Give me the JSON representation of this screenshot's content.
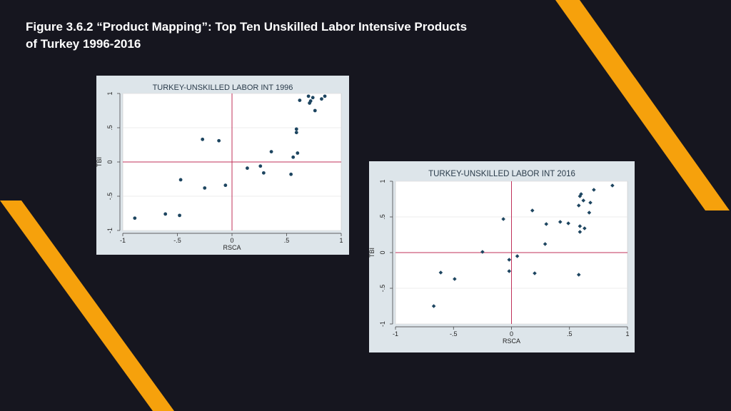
{
  "page": {
    "title_line1": "Figure 3.6.2 “Product Mapping”: Top Ten Unskilled Labor Intensive Products",
    "title_line2": "of Turkey 1996-2016",
    "background_color": "#16161f",
    "stripe_color": "#f6a10c"
  },
  "chart_data": [
    {
      "type": "scatter",
      "title": "TURKEY-UNSKILLED LABOR INT 1996",
      "xlabel": "RSCA",
      "ylabel": "TBI",
      "xlim": [
        -1,
        1
      ],
      "ylim": [
        -1,
        1
      ],
      "xticks": [
        "-1",
        "-.5",
        "0",
        ".5",
        "1"
      ],
      "yticks": [
        "-1",
        "-.5",
        "0",
        ".5",
        "1"
      ],
      "grid": true,
      "reference_lines": {
        "x": 0,
        "y": 0,
        "color": "#c0305a"
      },
      "marker_color": "#1d4560",
      "points": [
        {
          "x": 0.7,
          "y": 0.96
        },
        {
          "x": 0.74,
          "y": 0.94
        },
        {
          "x": 0.82,
          "y": 0.92
        },
        {
          "x": 0.85,
          "y": 0.96
        },
        {
          "x": 0.71,
          "y": 0.86
        },
        {
          "x": 0.72,
          "y": 0.89
        },
        {
          "x": 0.62,
          "y": 0.9
        },
        {
          "x": 0.76,
          "y": 0.75
        },
        {
          "x": 0.59,
          "y": 0.48
        },
        {
          "x": 0.59,
          "y": 0.43
        },
        {
          "x": 0.6,
          "y": 0.13
        },
        {
          "x": 0.56,
          "y": 0.07
        },
        {
          "x": -0.27,
          "y": 0.33
        },
        {
          "x": -0.12,
          "y": 0.31
        },
        {
          "x": 0.36,
          "y": 0.15
        },
        {
          "x": 0.26,
          "y": -0.06
        },
        {
          "x": 0.14,
          "y": -0.09
        },
        {
          "x": 0.29,
          "y": -0.16
        },
        {
          "x": 0.54,
          "y": -0.18
        },
        {
          "x": -0.47,
          "y": -0.26
        },
        {
          "x": -0.06,
          "y": -0.34
        },
        {
          "x": -0.25,
          "y": -0.38
        },
        {
          "x": -0.61,
          "y": -0.76
        },
        {
          "x": -0.48,
          "y": -0.78
        },
        {
          "x": -0.89,
          "y": -0.82
        }
      ]
    },
    {
      "type": "scatter",
      "title": "TURKEY-UNSKILLED LABOR INT 2016",
      "xlabel": "RSCA",
      "ylabel": "TBI",
      "xlim": [
        -1,
        1
      ],
      "ylim": [
        -1,
        1
      ],
      "xticks": [
        "-1",
        "-.5",
        "0",
        ".5",
        "1"
      ],
      "yticks": [
        "-1",
        "-.5",
        "0",
        ".5",
        "1"
      ],
      "grid": true,
      "reference_lines": {
        "x": 0,
        "y": 0,
        "color": "#c0305a"
      },
      "marker_color": "#1d4560",
      "points": [
        {
          "x": 0.87,
          "y": 0.94
        },
        {
          "x": 0.71,
          "y": 0.88
        },
        {
          "x": 0.6,
          "y": 0.82
        },
        {
          "x": 0.59,
          "y": 0.79
        },
        {
          "x": 0.62,
          "y": 0.73
        },
        {
          "x": 0.68,
          "y": 0.7
        },
        {
          "x": 0.58,
          "y": 0.66
        },
        {
          "x": 0.67,
          "y": 0.56
        },
        {
          "x": 0.18,
          "y": 0.59
        },
        {
          "x": -0.07,
          "y": 0.47
        },
        {
          "x": 0.42,
          "y": 0.43
        },
        {
          "x": 0.49,
          "y": 0.41
        },
        {
          "x": 0.3,
          "y": 0.4
        },
        {
          "x": 0.59,
          "y": 0.37
        },
        {
          "x": 0.63,
          "y": 0.34
        },
        {
          "x": 0.59,
          "y": 0.29
        },
        {
          "x": 0.29,
          "y": 0.12
        },
        {
          "x": -0.25,
          "y": 0.01
        },
        {
          "x": 0.05,
          "y": -0.05
        },
        {
          "x": -0.02,
          "y": -0.1
        },
        {
          "x": -0.02,
          "y": -0.26
        },
        {
          "x": 0.2,
          "y": -0.29
        },
        {
          "x": 0.58,
          "y": -0.31
        },
        {
          "x": -0.61,
          "y": -0.28
        },
        {
          "x": -0.49,
          "y": -0.37
        },
        {
          "x": -0.67,
          "y": -0.75
        }
      ]
    }
  ]
}
